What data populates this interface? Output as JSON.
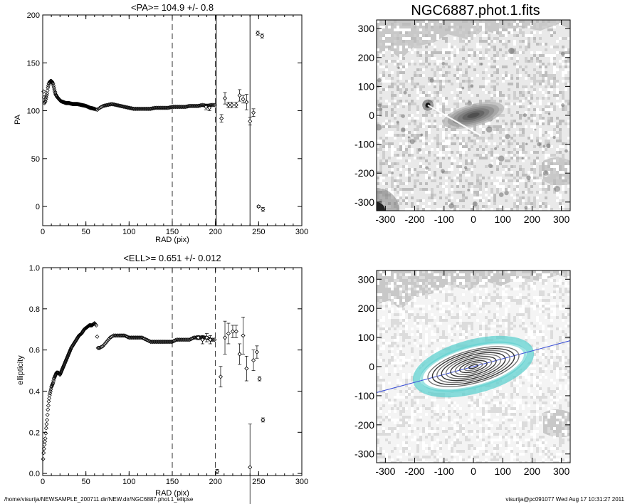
{
  "footer": {
    "path": "/home/visurija/NEWSAMPLE_200711.dir/NEW.dir/NGC6887.phot.1_ellipse",
    "stamp": "visurija@pc091077  Wed Aug 17 10:31:27 2011"
  },
  "chart_data": [
    {
      "type": "scatter",
      "title": "<PA>= 104.9 +/-   0.8",
      "xlabel": "RAD (pix)",
      "ylabel": "PA",
      "xlim": [
        0,
        300
      ],
      "ylim": [
        -20,
        200
      ],
      "xticks": [
        0,
        50,
        100,
        150,
        200,
        250,
        300
      ],
      "yticks": [
        0,
        50,
        100,
        150,
        200
      ],
      "vlines_dashed": [
        150,
        200
      ],
      "vlines_solid": [
        201,
        240
      ],
      "profile": [
        [
          1,
          120
        ],
        [
          2,
          108
        ],
        [
          3,
          110
        ],
        [
          4,
          114
        ],
        [
          5,
          118
        ],
        [
          6,
          124
        ],
        [
          7,
          128
        ],
        [
          8,
          130
        ],
        [
          9,
          131
        ],
        [
          10,
          131
        ],
        [
          11,
          130
        ],
        [
          12,
          128
        ],
        [
          13,
          124
        ],
        [
          14,
          120
        ],
        [
          15,
          117
        ],
        [
          17,
          114
        ],
        [
          19,
          112
        ],
        [
          21,
          110
        ],
        [
          24,
          109
        ],
        [
          27,
          108
        ],
        [
          30,
          108
        ],
        [
          35,
          107
        ],
        [
          40,
          107
        ],
        [
          45,
          106
        ],
        [
          50,
          105
        ],
        [
          55,
          103
        ],
        [
          60,
          102
        ],
        [
          63,
          101
        ],
        [
          66,
          103
        ],
        [
          70,
          105
        ],
        [
          75,
          106
        ],
        [
          80,
          107
        ],
        [
          85,
          106
        ],
        [
          90,
          105
        ],
        [
          95,
          104
        ],
        [
          100,
          103
        ],
        [
          105,
          102
        ],
        [
          110,
          102
        ],
        [
          115,
          102
        ],
        [
          120,
          102
        ],
        [
          125,
          102
        ],
        [
          130,
          103
        ],
        [
          135,
          103
        ],
        [
          140,
          103
        ],
        [
          145,
          103
        ],
        [
          150,
          104
        ],
        [
          155,
          104
        ],
        [
          160,
          104
        ],
        [
          165,
          104
        ],
        [
          170,
          105
        ],
        [
          175,
          105
        ],
        [
          180,
          105
        ],
        [
          185,
          106
        ],
        [
          190,
          105
        ],
        [
          195,
          106
        ],
        [
          199,
          106
        ]
      ],
      "sparse": [
        {
          "x": 189,
          "y": 104,
          "err": 3
        },
        {
          "x": 193,
          "y": 103,
          "err": 3
        },
        {
          "x": 207,
          "y": 92,
          "err": 4
        },
        {
          "x": 211,
          "y": 113,
          "err": 6
        },
        {
          "x": 215,
          "y": 106,
          "err": 3
        },
        {
          "x": 219,
          "y": 106,
          "err": 3
        },
        {
          "x": 224,
          "y": 106,
          "err": 3
        },
        {
          "x": 228,
          "y": 116,
          "err": 6
        },
        {
          "x": 232,
          "y": 112,
          "err": 4
        },
        {
          "x": 236,
          "y": 109,
          "err": 8
        },
        {
          "x": 240,
          "y": 89,
          "err": 4
        },
        {
          "x": 244,
          "y": 98,
          "err": 4
        },
        {
          "x": 249,
          "y": 181,
          "err": 2
        },
        {
          "x": 254,
          "y": 178,
          "err": 2
        },
        {
          "x": 250,
          "y": 0,
          "err": 1
        },
        {
          "x": 255,
          "y": -3,
          "err": 2
        }
      ]
    },
    {
      "type": "scatter",
      "title": "<ELL>= 0.651 +/-  0.012",
      "xlabel": "RAD (pix)",
      "ylabel": "ellipticity",
      "xlim": [
        0,
        300
      ],
      "ylim": [
        -0.01,
        1.0
      ],
      "xticks": [
        0,
        50,
        100,
        150,
        200,
        250,
        300
      ],
      "yticks": [
        0.0,
        0.2,
        0.4,
        0.6,
        0.8,
        1.0
      ],
      "vlines_dashed": [
        150,
        200
      ],
      "vlines_solid": [],
      "profile": [
        [
          0.5,
          0.07
        ],
        [
          1,
          0.1
        ],
        [
          2,
          0.14
        ],
        [
          3,
          0.17
        ],
        [
          4,
          0.22
        ],
        [
          5,
          0.26
        ],
        [
          6,
          0.31
        ],
        [
          7,
          0.35
        ],
        [
          8,
          0.38
        ],
        [
          9,
          0.4
        ],
        [
          10,
          0.42
        ],
        [
          11,
          0.43
        ],
        [
          12,
          0.44
        ],
        [
          13,
          0.46
        ],
        [
          14,
          0.47
        ],
        [
          15,
          0.48
        ],
        [
          16,
          0.49
        ],
        [
          18,
          0.49
        ],
        [
          20,
          0.48
        ],
        [
          22,
          0.5
        ],
        [
          24,
          0.52
        ],
        [
          26,
          0.54
        ],
        [
          28,
          0.56
        ],
        [
          30,
          0.58
        ],
        [
          33,
          0.61
        ],
        [
          36,
          0.63
        ],
        [
          39,
          0.65
        ],
        [
          42,
          0.67
        ],
        [
          45,
          0.68
        ],
        [
          48,
          0.7
        ],
        [
          51,
          0.71
        ],
        [
          54,
          0.72
        ],
        [
          57,
          0.72
        ],
        [
          60,
          0.73
        ],
        [
          62,
          0.72
        ],
        [
          64,
          0.61
        ],
        [
          66,
          0.61
        ],
        [
          70,
          0.62
        ],
        [
          74,
          0.64
        ],
        [
          78,
          0.66
        ],
        [
          82,
          0.67
        ],
        [
          86,
          0.67
        ],
        [
          90,
          0.67
        ],
        [
          95,
          0.67
        ],
        [
          100,
          0.66
        ],
        [
          105,
          0.66
        ],
        [
          110,
          0.66
        ],
        [
          115,
          0.66
        ],
        [
          120,
          0.65
        ],
        [
          125,
          0.64
        ],
        [
          130,
          0.64
        ],
        [
          135,
          0.64
        ],
        [
          140,
          0.64
        ],
        [
          145,
          0.64
        ],
        [
          150,
          0.64
        ],
        [
          155,
          0.65
        ],
        [
          160,
          0.65
        ],
        [
          165,
          0.65
        ],
        [
          170,
          0.65
        ],
        [
          175,
          0.66
        ],
        [
          180,
          0.66
        ],
        [
          185,
          0.66
        ],
        [
          190,
          0.66
        ],
        [
          195,
          0.65
        ],
        [
          199,
          0.65
        ]
      ],
      "sparse": [
        {
          "x": 180,
          "y": 0.66,
          "err": 0.01
        },
        {
          "x": 185,
          "y": 0.65,
          "err": 0.02
        },
        {
          "x": 190,
          "y": 0.66,
          "err": 0.02
        },
        {
          "x": 194,
          "y": 0.65,
          "err": 0.02
        },
        {
          "x": 202,
          "y": 0.01,
          "err": 0.01
        },
        {
          "x": 206,
          "y": 0.47,
          "err": 0.05
        },
        {
          "x": 211,
          "y": 0.66,
          "err": 0.08
        },
        {
          "x": 215,
          "y": 0.68,
          "err": 0.05
        },
        {
          "x": 220,
          "y": 0.69,
          "err": 0.03
        },
        {
          "x": 224,
          "y": 0.69,
          "err": 0.03
        },
        {
          "x": 228,
          "y": 0.58,
          "err": 0.05
        },
        {
          "x": 232,
          "y": 0.67,
          "err": 0.09
        },
        {
          "x": 236,
          "y": 0.51,
          "err": 0.06
        },
        {
          "x": 240,
          "y": 0.03,
          "err": 0.21
        },
        {
          "x": 244,
          "y": 0.55,
          "err": 0.05
        },
        {
          "x": 248,
          "y": 0.59,
          "err": 0.03
        },
        {
          "x": 251,
          "y": 0.46,
          "err": 0.01
        },
        {
          "x": 255,
          "y": 0.26,
          "err": 0.01
        }
      ]
    },
    {
      "type": "heatmap",
      "title": "NGC6887.phot.1.fits",
      "xlim": [
        -330,
        330
      ],
      "ylim": [
        -330,
        330
      ],
      "xticks": [
        -300,
        -200,
        -100,
        0,
        100,
        200,
        300
      ],
      "yticks": [
        -300,
        -200,
        -100,
        0,
        100,
        200,
        300
      ],
      "galaxy_center": [
        0,
        0
      ],
      "galaxy_pa_deg": 105,
      "galaxy_semimajor": 90,
      "galaxy_ellipticity": 0.65,
      "bright_star": [
        -155,
        35
      ]
    },
    {
      "type": "heatmap",
      "title": "",
      "xlim": [
        -330,
        330
      ],
      "ylim": [
        -330,
        330
      ],
      "xticks": [
        -300,
        -200,
        -100,
        0,
        100,
        200,
        300
      ],
      "yticks": [
        -300,
        -200,
        -100,
        0,
        100,
        200,
        300
      ],
      "contour_color": "#5fd0cf",
      "line_color": "#3a4fd8",
      "isophote_axes": [
        20,
        40,
        60,
        80,
        100,
        120,
        140,
        160,
        180,
        200
      ],
      "ellipticity": 0.65,
      "pa_deg": 105
    }
  ]
}
